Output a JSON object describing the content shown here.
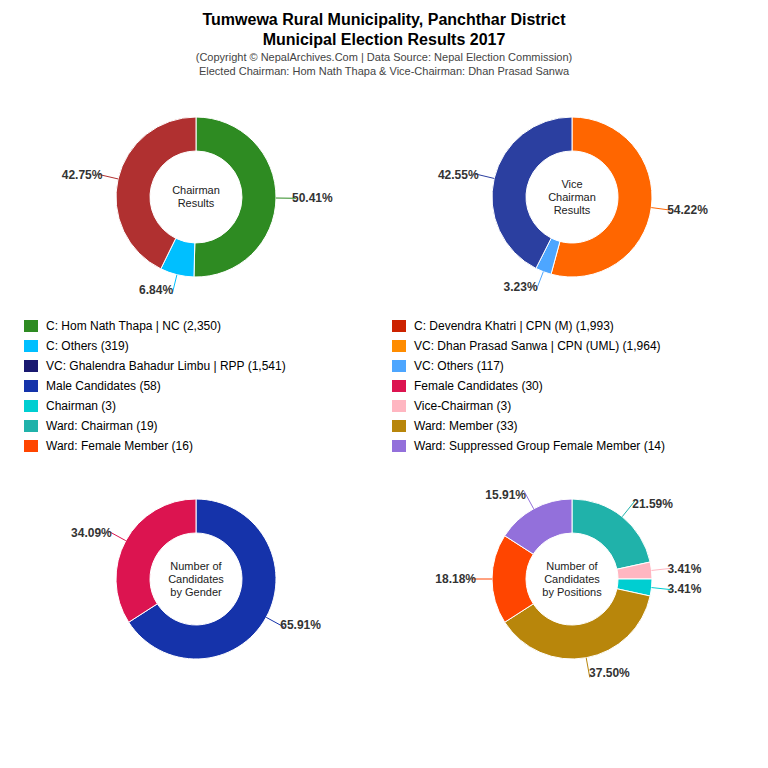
{
  "title": [
    "Tumwewa Rural Municipality, Panchthar District",
    "Municipal Election Results 2017"
  ],
  "subtitle": [
    "(Copyright © NepalArchives.Com | Data Source: Nepal Election Commission)",
    "Elected Chairman: Hom Nath Thapa & Vice-Chairman: Dhan Prasad Sanwa"
  ],
  "series": [
    {
      "name": "C: Hom Nath Thapa | NC (2,350)",
      "color": "#2E8B22"
    },
    {
      "name": "C: Others (319)",
      "color": "#00BFFF"
    },
    {
      "name": "VC: Ghalendra Bahadur Limbu | RPP (1,541)",
      "color": "#191970"
    },
    {
      "name": "Male Candidates (58)",
      "color": "#1533AA"
    },
    {
      "name": "Chairman (3)",
      "color": "#00CED1"
    },
    {
      "name": "Ward: Chairman (19)",
      "color": "#20B2AA"
    },
    {
      "name": "Ward: Female Member (16)",
      "color": "#FF4500"
    },
    {
      "name": "C: Devendra Khatri | CPN (M) (1,993)",
      "color": "#CC2200"
    },
    {
      "name": "VC: Dhan Prasad Sanwa | CPN (UML) (1,964)",
      "color": "#FF8C00"
    },
    {
      "name": "VC: Others (117)",
      "color": "#4DA6FF"
    },
    {
      "name": "Female Candidates (30)",
      "color": "#DC1450"
    },
    {
      "name": "Vice-Chairman (3)",
      "color": "#FFB6C1"
    },
    {
      "name": "Ward: Member (33)",
      "color": "#B8860B"
    },
    {
      "name": "Ward: Suppressed Group Female Member (14)",
      "color": "#9370DB"
    }
  ],
  "chart_data": [
    {
      "type": "pie",
      "title": "Chairman\nResults",
      "values": [
        50.41,
        6.84,
        42.75
      ],
      "value_labels": [
        "50.41%",
        "6.84%",
        "42.75%"
      ],
      "colors": [
        "#2E8B22",
        "#00BFFF",
        "#B03030"
      ],
      "data_labels": true
    },
    {
      "type": "pie",
      "title": "Vice\nChairman\nResults",
      "values": [
        54.22,
        3.23,
        42.55
      ],
      "value_labels": [
        "54.22%",
        "3.23%",
        "42.55%"
      ],
      "colors": [
        "#FF6600",
        "#4DA6FF",
        "#2B3FA0"
      ],
      "data_labels": true
    },
    {
      "type": "pie",
      "title": "Number of\nCandidates\nby Gender",
      "values": [
        65.91,
        34.09
      ],
      "value_labels": [
        "65.91%",
        "34.09%"
      ],
      "colors": [
        "#1533AA",
        "#DC1450"
      ],
      "data_labels": true
    },
    {
      "type": "pie",
      "title": "Number of\nCandidates\nby Positions",
      "values": [
        21.59,
        3.41,
        3.41,
        37.5,
        18.18,
        15.91
      ],
      "value_labels": [
        "21.59%",
        "3.41%",
        "3.41%",
        "37.50%",
        "18.18%",
        "15.91%"
      ],
      "colors": [
        "#20B2AA",
        "#FFB6C1",
        "#00CED1",
        "#B8860B",
        "#FF4500",
        "#9370DB"
      ],
      "data_labels": true
    }
  ]
}
